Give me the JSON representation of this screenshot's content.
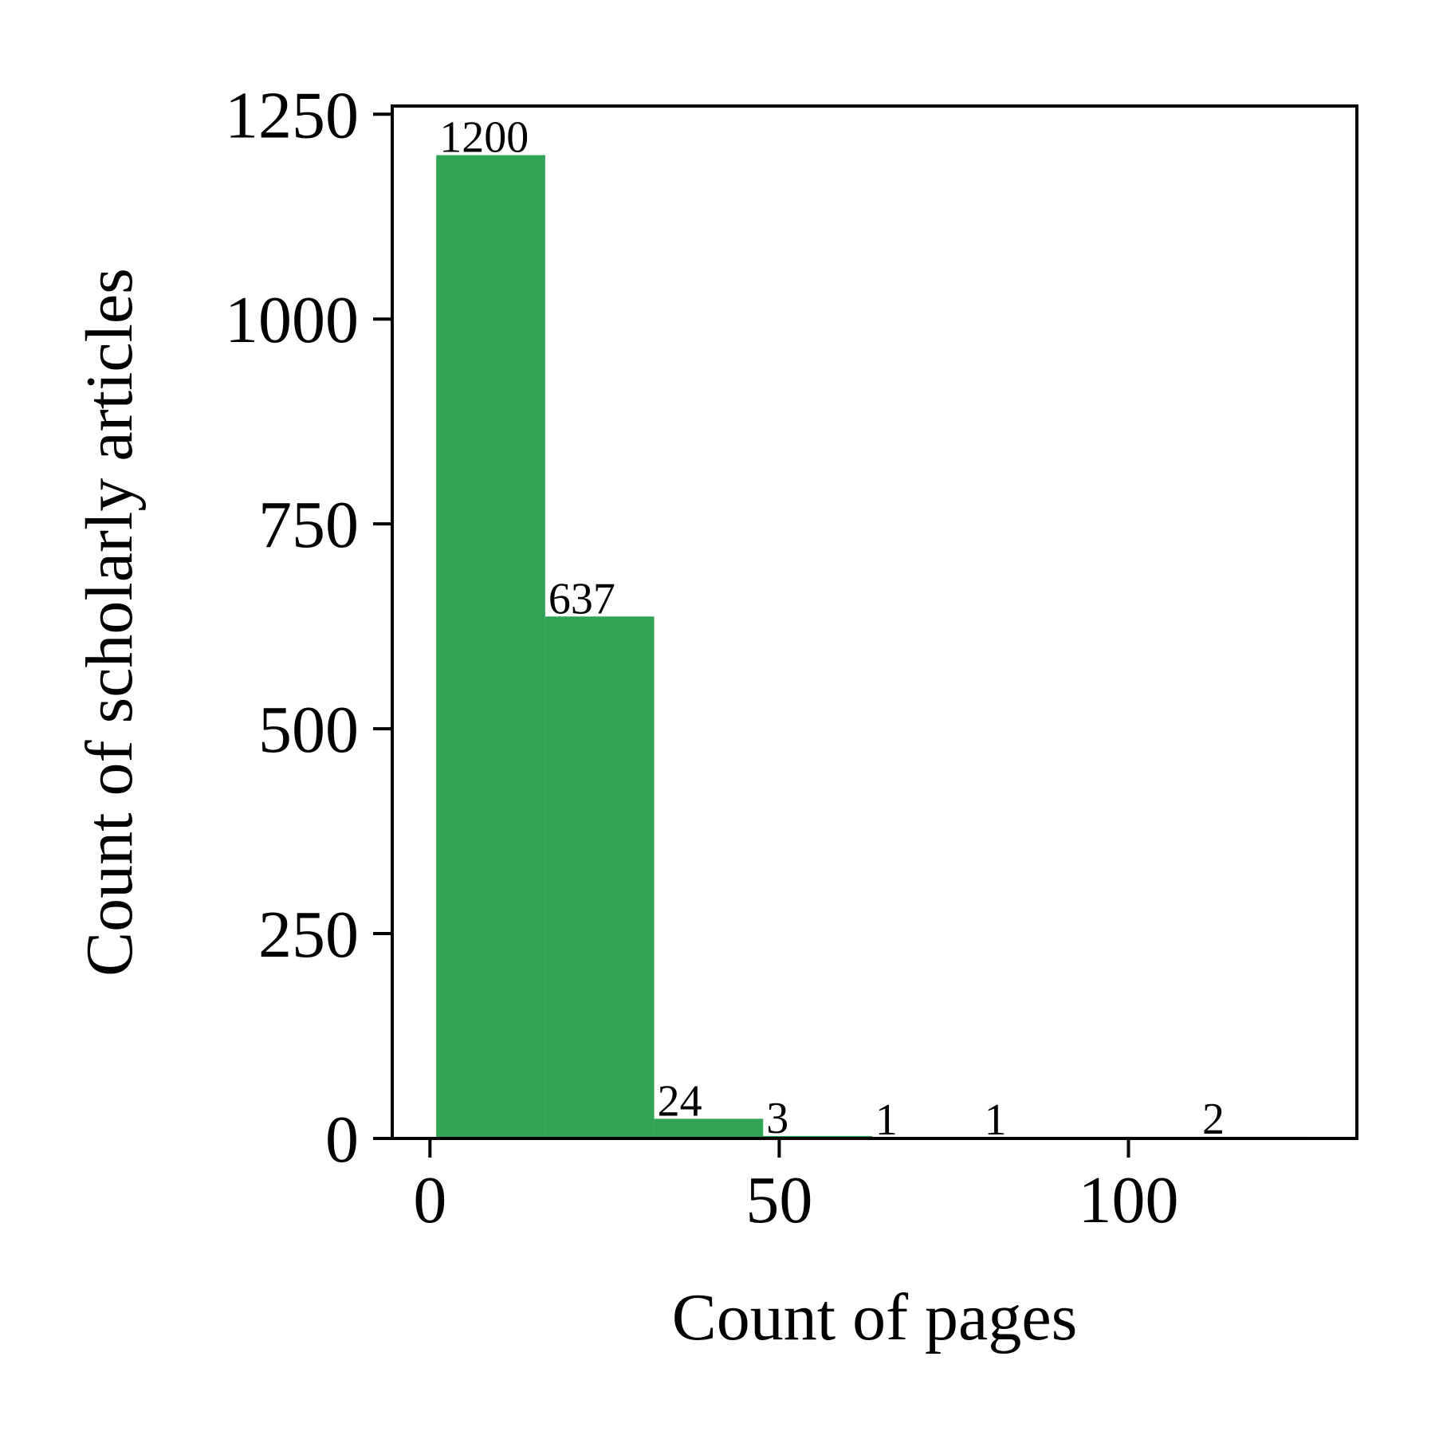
{
  "colors": {
    "bar": "#31a354",
    "axis": "#000000",
    "background": "#ffffff"
  },
  "chart_data": {
    "type": "bar",
    "title": "",
    "xlabel": "Count of pages",
    "ylabel": "Count of scholarly articles",
    "xlim": [
      -5.4,
      132.7
    ],
    "ylim": [
      0,
      1260
    ],
    "grid": false,
    "legend": "none",
    "bin_width": 15.6,
    "bins": [
      {
        "start": 0.9,
        "end": 16.5,
        "value": 1200,
        "label": "1200"
      },
      {
        "start": 16.5,
        "end": 32.1,
        "value": 637,
        "label": "637"
      },
      {
        "start": 32.1,
        "end": 47.7,
        "value": 24,
        "label": "24"
      },
      {
        "start": 47.7,
        "end": 63.3,
        "value": 3,
        "label": "3"
      },
      {
        "start": 63.3,
        "end": 78.9,
        "value": 1,
        "label": "1"
      },
      {
        "start": 78.9,
        "end": 94.5,
        "value": 1,
        "label": "1"
      },
      {
        "start": 94.5,
        "end": 110.1,
        "value": 0,
        "label": ""
      },
      {
        "start": 110.1,
        "end": 125.7,
        "value": 2,
        "label": "2"
      }
    ],
    "xticks": [
      {
        "value": 0,
        "label": "0"
      },
      {
        "value": 50,
        "label": "50"
      },
      {
        "value": 100,
        "label": "100"
      }
    ],
    "yticks": [
      {
        "value": 0,
        "label": "0"
      },
      {
        "value": 250,
        "label": "250"
      },
      {
        "value": 500,
        "label": "500"
      },
      {
        "value": 750,
        "label": "750"
      },
      {
        "value": 1000,
        "label": "1000"
      },
      {
        "value": 1250,
        "label": "1250"
      }
    ]
  }
}
